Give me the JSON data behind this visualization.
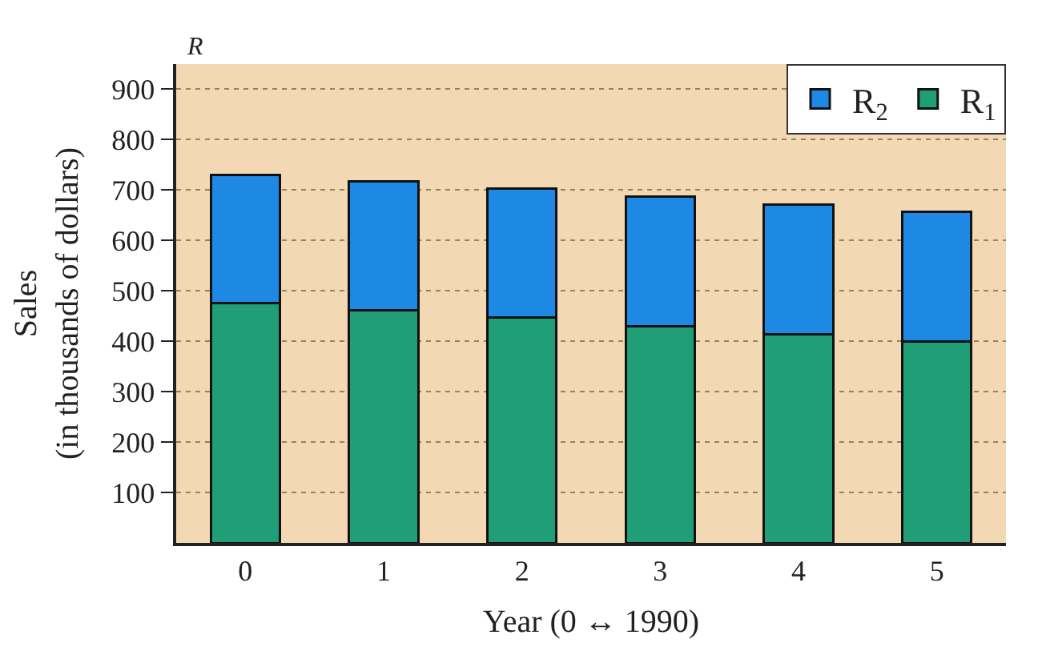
{
  "chart_data": {
    "type": "bar",
    "stacked": true,
    "categories": [
      "0",
      "1",
      "2",
      "3",
      "4",
      "5"
    ],
    "series": [
      {
        "name": "R$_{1}$",
        "color": "#1f9e78",
        "values": [
          476,
          462,
          447,
          430,
          414,
          400
        ]
      },
      {
        "name": "R$_{2}$",
        "color": "#1e88e5",
        "values": [
          254,
          255,
          256,
          257,
          257,
          257
        ]
      }
    ],
    "xlabel": "Year (0 ↔ 1990)",
    "ylabel": "Sales\n(in thousands of dollars)",
    "annotations": [
      "R"
    ],
    "ylim": [
      0,
      950
    ],
    "yticks": [
      100,
      200,
      300,
      400,
      500,
      600,
      700,
      800,
      900
    ],
    "grid": "y",
    "legend": "top right"
  }
}
